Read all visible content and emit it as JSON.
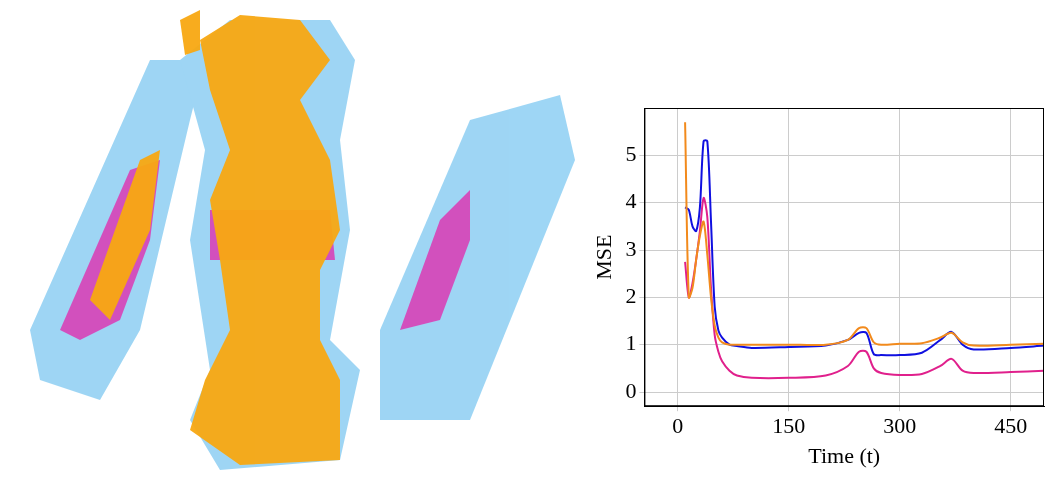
{
  "chart_data": {
    "type": "line",
    "x_label": "Time (t)",
    "y_label": "MSE",
    "x": [
      10,
      15,
      20,
      25,
      30,
      35,
      40,
      45,
      50,
      55,
      60,
      70,
      80,
      100,
      150,
      200,
      230,
      245,
      255,
      265,
      275,
      300,
      330,
      355,
      370,
      385,
      400,
      450,
      495
    ],
    "series": [
      {
        "color": "#f28a1c",
        "values": [
          5.7,
          2.0,
          2.2,
          2.8,
          3.3,
          3.6,
          2.9,
          2.0,
          1.4,
          1.15,
          1.05,
          1.0,
          1.0,
          1.0,
          1.0,
          1.0,
          1.1,
          1.35,
          1.35,
          1.05,
          1.0,
          1.02,
          1.03,
          1.15,
          1.25,
          1.05,
          0.98,
          1.0,
          1.02
        ]
      },
      {
        "color": "#1010e0",
        "values": [
          3.9,
          3.85,
          3.5,
          3.4,
          3.9,
          5.3,
          5.3,
          3.6,
          1.8,
          1.3,
          1.15,
          1.0,
          0.97,
          0.93,
          0.95,
          0.98,
          1.1,
          1.25,
          1.25,
          0.8,
          0.78,
          0.78,
          0.83,
          1.1,
          1.27,
          1.0,
          0.9,
          0.93,
          0.98
        ]
      },
      {
        "color": "#e0208c",
        "values": [
          2.75,
          2.0,
          2.3,
          2.8,
          3.4,
          4.1,
          3.7,
          2.2,
          1.2,
          0.85,
          0.65,
          0.45,
          0.35,
          0.3,
          0.3,
          0.35,
          0.55,
          0.85,
          0.85,
          0.5,
          0.4,
          0.36,
          0.38,
          0.55,
          0.7,
          0.45,
          0.4,
          0.42,
          0.45
        ]
      }
    ],
    "xlim": [
      -45,
      495
    ],
    "xticks": [
      0,
      150,
      300,
      450
    ],
    "ylim": [
      -0.3,
      6
    ],
    "yticks": [
      0,
      1,
      2,
      3,
      4,
      5
    ],
    "grid": true
  }
}
